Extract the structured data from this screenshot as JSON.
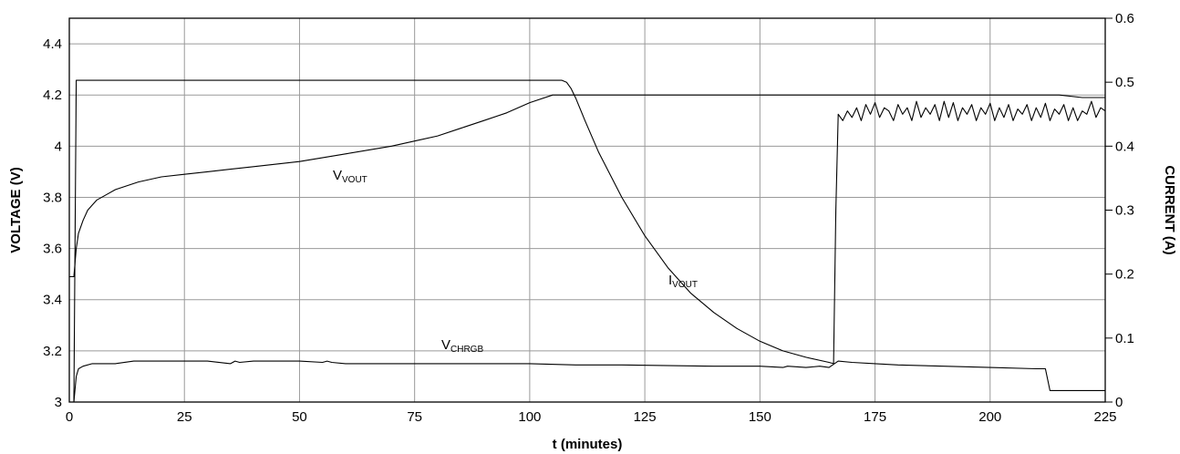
{
  "chart_data": {
    "type": "line",
    "xlabel": "t (minutes)",
    "ylabel_left": "VOLTAGE (V)",
    "ylabel_right": "CURRENT (A)",
    "xlim": [
      0,
      225
    ],
    "ylim_left": [
      3.0,
      4.5
    ],
    "ylim_right": [
      0,
      0.6
    ],
    "x_ticks": [
      "0",
      "25",
      "50",
      "75",
      "100",
      "125",
      "150",
      "175",
      "200",
      "225"
    ],
    "y_left_ticks": [
      "3",
      "3.2",
      "3.4",
      "3.6",
      "3.8",
      "4",
      "4.2",
      "4.4"
    ],
    "y_right_ticks": [
      "0",
      "0.1",
      "0.2",
      "0.3",
      "0.4",
      "0.5",
      "0.6"
    ],
    "grid": true,
    "series": [
      {
        "name": "VVOUT",
        "label_main": "V",
        "label_sub": "VOUT",
        "axis": "left",
        "x": [
          0,
          1,
          1.5,
          2,
          3,
          4,
          5,
          6,
          8,
          10,
          15,
          20,
          25,
          30,
          40,
          50,
          60,
          70,
          75,
          80,
          85,
          90,
          95,
          100,
          105,
          108,
          110,
          120,
          130,
          140,
          150,
          160,
          166,
          167,
          170,
          180,
          190,
          200,
          210,
          215,
          220,
          225
        ],
        "y": [
          3.49,
          3.49,
          3.6,
          3.66,
          3.71,
          3.75,
          3.77,
          3.79,
          3.81,
          3.83,
          3.86,
          3.88,
          3.89,
          3.9,
          3.92,
          3.94,
          3.97,
          4.0,
          4.02,
          4.04,
          4.07,
          4.1,
          4.13,
          4.17,
          4.2,
          4.2,
          4.2,
          4.2,
          4.2,
          4.2,
          4.2,
          4.2,
          4.2,
          4.2,
          4.2,
          4.2,
          4.2,
          4.2,
          4.2,
          4.2,
          4.19,
          4.19
        ]
      },
      {
        "name": "IVOUT",
        "label_main": "I",
        "label_sub": "VOUT",
        "axis": "right",
        "x": [
          0,
          1,
          1.5,
          2,
          50,
          100,
          107,
          108,
          109,
          110,
          112,
          115,
          120,
          125,
          130,
          135,
          140,
          145,
          150,
          155,
          160,
          165,
          166,
          166.5,
          167,
          168,
          169,
          170,
          171,
          172,
          173,
          174,
          175,
          176,
          177,
          178,
          179,
          180,
          181,
          182,
          183,
          184,
          185,
          186,
          187,
          188,
          189,
          190,
          191,
          192,
          193,
          194,
          195,
          196,
          197,
          198,
          199,
          200,
          201,
          202,
          203,
          204,
          205,
          206,
          207,
          208,
          209,
          210,
          211,
          212,
          213,
          214,
          215,
          216,
          217,
          218,
          219,
          220,
          221,
          222,
          223,
          224,
          225
        ],
        "y": [
          0,
          0,
          0.503,
          0.503,
          0.503,
          0.503,
          0.503,
          0.5,
          0.49,
          0.475,
          0.44,
          0.39,
          0.32,
          0.26,
          0.21,
          0.17,
          0.14,
          0.115,
          0.095,
          0.08,
          0.07,
          0.062,
          0.06,
          0.3,
          0.45,
          0.44,
          0.455,
          0.445,
          0.46,
          0.44,
          0.465,
          0.45,
          0.468,
          0.445,
          0.46,
          0.455,
          0.44,
          0.465,
          0.45,
          0.46,
          0.44,
          0.47,
          0.445,
          0.46,
          0.45,
          0.465,
          0.44,
          0.47,
          0.445,
          0.468,
          0.44,
          0.46,
          0.45,
          0.465,
          0.44,
          0.46,
          0.45,
          0.467,
          0.44,
          0.46,
          0.445,
          0.465,
          0.44,
          0.458,
          0.45,
          0.465,
          0.44,
          0.46,
          0.445,
          0.467,
          0.44,
          0.458,
          0.45,
          0.465,
          0.44,
          0.46,
          0.44,
          0.455,
          0.45,
          0.47,
          0.445,
          0.46,
          0.455
        ]
      },
      {
        "name": "VCHRGB",
        "label_main": "V",
        "label_sub": "CHRGB",
        "axis": "left",
        "x": [
          0,
          1,
          1.5,
          2,
          3,
          5,
          10,
          14,
          20,
          30,
          35,
          36,
          37,
          40,
          50,
          55,
          56,
          57,
          60,
          80,
          100,
          110,
          120,
          140,
          150,
          155,
          156,
          160,
          163,
          165,
          167,
          170,
          175,
          180,
          190,
          200,
          210,
          212,
          213,
          220,
          225
        ],
        "y": [
          3.0,
          3.0,
          3.1,
          3.13,
          3.14,
          3.15,
          3.15,
          3.16,
          3.16,
          3.16,
          3.15,
          3.16,
          3.155,
          3.16,
          3.16,
          3.155,
          3.16,
          3.155,
          3.15,
          3.15,
          3.15,
          3.145,
          3.145,
          3.14,
          3.14,
          3.135,
          3.14,
          3.135,
          3.14,
          3.135,
          3.16,
          3.155,
          3.15,
          3.145,
          3.14,
          3.135,
          3.13,
          3.13,
          3.045,
          3.045,
          3.045
        ]
      }
    ]
  }
}
